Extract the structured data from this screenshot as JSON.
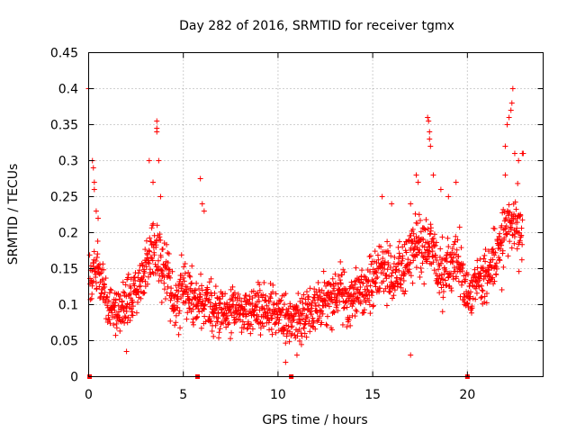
{
  "chart_data": {
    "type": "scatter",
    "title": "Day 282 of 2016, SRMTID for receiver tgmx",
    "xlabel": "GPS time / hours",
    "ylabel": "SRMTID / TECUs",
    "xlim": [
      0,
      24
    ],
    "ylim": [
      0,
      0.45
    ],
    "x_ticks": [
      0,
      5,
      10,
      15,
      20
    ],
    "x_tick_labels": [
      "0",
      "5",
      "10",
      "15",
      "20"
    ],
    "y_ticks": [
      0,
      0.05,
      0.1,
      0.15,
      0.2,
      0.25,
      0.3,
      0.35,
      0.4,
      0.45
    ],
    "y_tick_labels": [
      "0",
      "0.05",
      "0.1",
      "0.15",
      "0.2",
      "0.25",
      "0.3",
      "0.35",
      "0.4",
      "0.45"
    ],
    "grid": true,
    "marker": "plus",
    "color": "#ff0000",
    "series_name": "SRMTID",
    "profile": [
      {
        "x": 0.0,
        "y": 0.14
      },
      {
        "x": 0.5,
        "y": 0.15
      },
      {
        "x": 1.0,
        "y": 0.1
      },
      {
        "x": 1.5,
        "y": 0.09
      },
      {
        "x": 2.0,
        "y": 0.1
      },
      {
        "x": 2.5,
        "y": 0.11
      },
      {
        "x": 3.0,
        "y": 0.15
      },
      {
        "x": 3.5,
        "y": 0.18
      },
      {
        "x": 4.0,
        "y": 0.15
      },
      {
        "x": 4.5,
        "y": 0.1
      },
      {
        "x": 5.0,
        "y": 0.13
      },
      {
        "x": 5.5,
        "y": 0.1
      },
      {
        "x": 6.0,
        "y": 0.1
      },
      {
        "x": 6.5,
        "y": 0.1
      },
      {
        "x": 7.0,
        "y": 0.09
      },
      {
        "x": 8.0,
        "y": 0.09
      },
      {
        "x": 9.0,
        "y": 0.09
      },
      {
        "x": 10.0,
        "y": 0.09
      },
      {
        "x": 10.5,
        "y": 0.08
      },
      {
        "x": 11.0,
        "y": 0.08
      },
      {
        "x": 11.5,
        "y": 0.09
      },
      {
        "x": 12.0,
        "y": 0.1
      },
      {
        "x": 12.5,
        "y": 0.11
      },
      {
        "x": 13.0,
        "y": 0.12
      },
      {
        "x": 13.5,
        "y": 0.11
      },
      {
        "x": 14.0,
        "y": 0.11
      },
      {
        "x": 14.5,
        "y": 0.12
      },
      {
        "x": 15.0,
        "y": 0.13
      },
      {
        "x": 15.5,
        "y": 0.15
      },
      {
        "x": 16.0,
        "y": 0.14
      },
      {
        "x": 16.5,
        "y": 0.14
      },
      {
        "x": 17.0,
        "y": 0.16
      },
      {
        "x": 17.5,
        "y": 0.19
      },
      {
        "x": 18.0,
        "y": 0.18
      },
      {
        "x": 18.5,
        "y": 0.15
      },
      {
        "x": 19.0,
        "y": 0.15
      },
      {
        "x": 19.5,
        "y": 0.16
      },
      {
        "x": 20.0,
        "y": 0.11
      },
      {
        "x": 20.5,
        "y": 0.13
      },
      {
        "x": 21.0,
        "y": 0.14
      },
      {
        "x": 21.5,
        "y": 0.16
      },
      {
        "x": 22.0,
        "y": 0.2
      },
      {
        "x": 22.5,
        "y": 0.21
      },
      {
        "x": 22.9,
        "y": 0.19
      }
    ],
    "spread": 0.035,
    "x_start": 0.05,
    "x_end": 22.9,
    "n_points": 1700,
    "spikes": [
      {
        "x": 0.0,
        "y": 0.4
      },
      {
        "x": 0.2,
        "y": 0.3
      },
      {
        "x": 0.25,
        "y": 0.29
      },
      {
        "x": 0.3,
        "y": 0.27
      },
      {
        "x": 0.3,
        "y": 0.26
      },
      {
        "x": 0.4,
        "y": 0.23
      },
      {
        "x": 0.5,
        "y": 0.22
      },
      {
        "x": 3.2,
        "y": 0.3
      },
      {
        "x": 3.4,
        "y": 0.27
      },
      {
        "x": 3.6,
        "y": 0.355
      },
      {
        "x": 3.6,
        "y": 0.345
      },
      {
        "x": 3.6,
        "y": 0.34
      },
      {
        "x": 3.7,
        "y": 0.3
      },
      {
        "x": 3.8,
        "y": 0.25
      },
      {
        "x": 5.9,
        "y": 0.275
      },
      {
        "x": 6.0,
        "y": 0.24
      },
      {
        "x": 6.1,
        "y": 0.23
      },
      {
        "x": 15.5,
        "y": 0.25
      },
      {
        "x": 16.0,
        "y": 0.24
      },
      {
        "x": 17.0,
        "y": 0.24
      },
      {
        "x": 17.3,
        "y": 0.28
      },
      {
        "x": 17.4,
        "y": 0.27
      },
      {
        "x": 17.9,
        "y": 0.36
      },
      {
        "x": 17.95,
        "y": 0.355
      },
      {
        "x": 18.0,
        "y": 0.34
      },
      {
        "x": 18.0,
        "y": 0.33
      },
      {
        "x": 18.05,
        "y": 0.32
      },
      {
        "x": 18.2,
        "y": 0.28
      },
      {
        "x": 18.6,
        "y": 0.26
      },
      {
        "x": 19.0,
        "y": 0.25
      },
      {
        "x": 19.4,
        "y": 0.27
      },
      {
        "x": 22.0,
        "y": 0.32
      },
      {
        "x": 22.0,
        "y": 0.28
      },
      {
        "x": 22.1,
        "y": 0.35
      },
      {
        "x": 22.2,
        "y": 0.36
      },
      {
        "x": 22.3,
        "y": 0.37
      },
      {
        "x": 22.35,
        "y": 0.38
      },
      {
        "x": 22.4,
        "y": 0.4
      },
      {
        "x": 22.5,
        "y": 0.31
      },
      {
        "x": 22.7,
        "y": 0.3
      },
      {
        "x": 22.9,
        "y": 0.31
      },
      {
        "x": 22.95,
        "y": 0.31
      },
      {
        "x": 17.0,
        "y": 0.03
      },
      {
        "x": 2.0,
        "y": 0.035
      },
      {
        "x": 10.4,
        "y": 0.02
      },
      {
        "x": 11.0,
        "y": 0.03
      }
    ],
    "zero_markers": [
      0.05,
      5.75,
      10.7,
      20.0
    ]
  }
}
